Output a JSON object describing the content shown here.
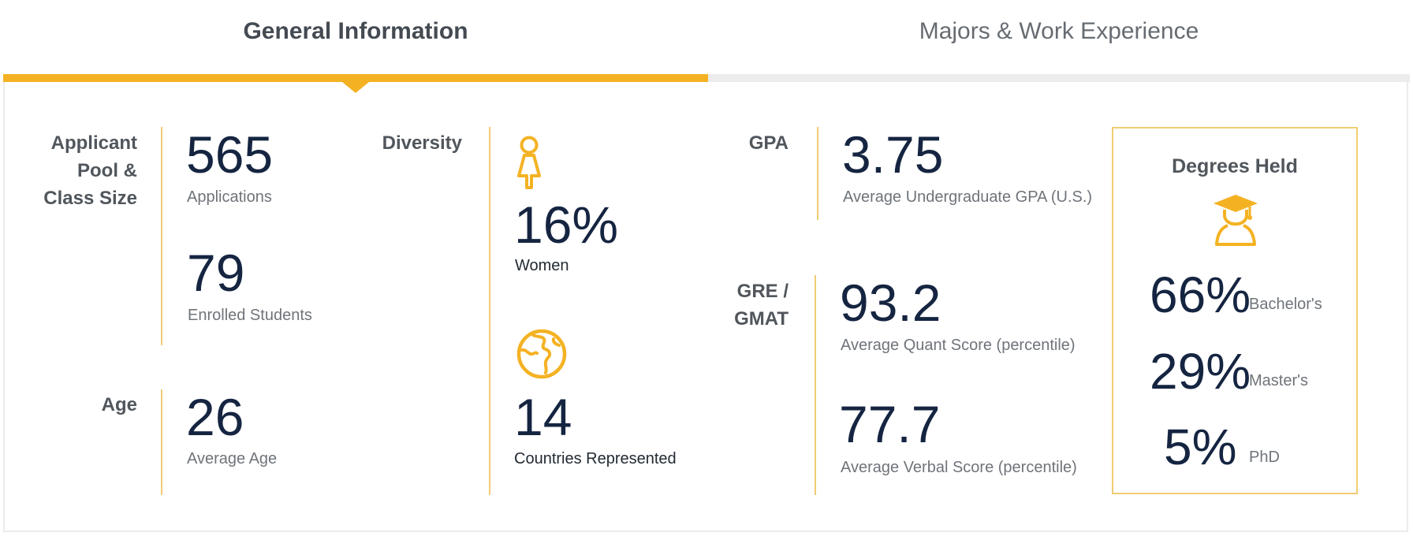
{
  "tabs": {
    "general": "General Information",
    "majors": "Majors & Work Experience"
  },
  "colors": {
    "accent": "#f4b223",
    "number": "#152541",
    "label": "#50565c",
    "muted": "#6f747a"
  },
  "applicant_pool": {
    "label_line1": "Applicant",
    "label_line2": "Pool &",
    "label_line3": "Class Size",
    "applications_value": "565",
    "applications_label": "Applications",
    "enrolled_value": "79",
    "enrolled_label": "Enrolled Students"
  },
  "age": {
    "label": "Age",
    "value": "26",
    "desc": "Average Age"
  },
  "diversity": {
    "label": "Diversity",
    "women_icon": "woman-icon",
    "women_value": "16%",
    "women_label": "Women",
    "globe_icon": "globe-icon",
    "countries_value": "14",
    "countries_label": "Countries Represented"
  },
  "gpa": {
    "label": "GPA",
    "value": "3.75",
    "desc": "Average Undergraduate GPA (U.S.)"
  },
  "gre": {
    "label_line1": "GRE /",
    "label_line2": "GMAT",
    "quant_value": "93.2",
    "quant_label": "Average Quant Score (percentile)",
    "verbal_value": "77.7",
    "verbal_label": "Average Verbal Score (percentile)"
  },
  "degrees": {
    "title": "Degrees Held",
    "icon": "graduate-icon",
    "bachelors_value": "66%",
    "bachelors_label": "Bachelor's",
    "masters_value": "29%",
    "masters_label": "Master's",
    "phd_value": "5%",
    "phd_label": "PhD"
  }
}
